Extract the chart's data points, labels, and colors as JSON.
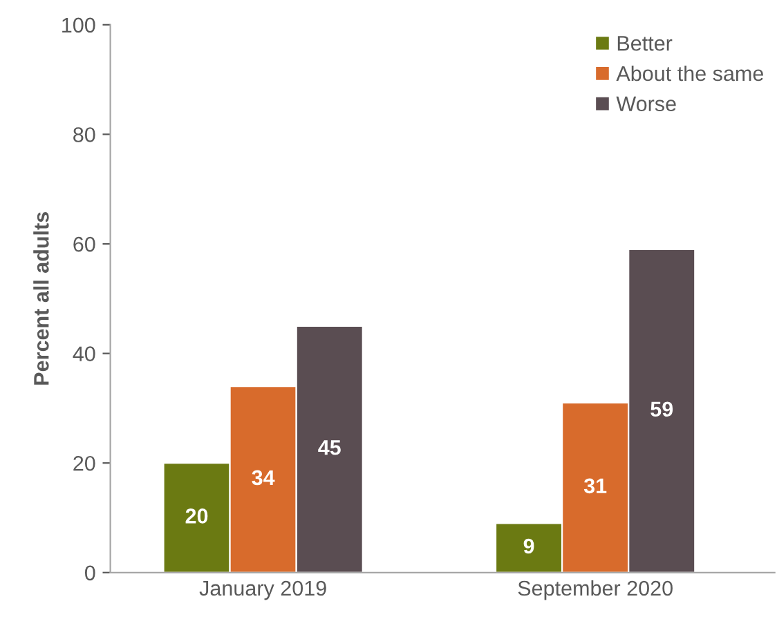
{
  "chart_data": {
    "type": "bar",
    "ylabel": "Percent all adults",
    "categories": [
      "January 2019",
      "September 2020"
    ],
    "series": [
      {
        "name": "Better",
        "color": "#6b7a12",
        "values": [
          20,
          9
        ]
      },
      {
        "name": "About the same",
        "color": "#d86b2c",
        "values": [
          34,
          31
        ]
      },
      {
        "name": "Worse",
        "color": "#5a4d52",
        "values": [
          45,
          59
        ]
      }
    ],
    "ylim": [
      0,
      100
    ],
    "yticks": [
      0,
      20,
      40,
      60,
      80,
      100
    ],
    "data_labels": true,
    "legend": "top right",
    "grid": false
  }
}
